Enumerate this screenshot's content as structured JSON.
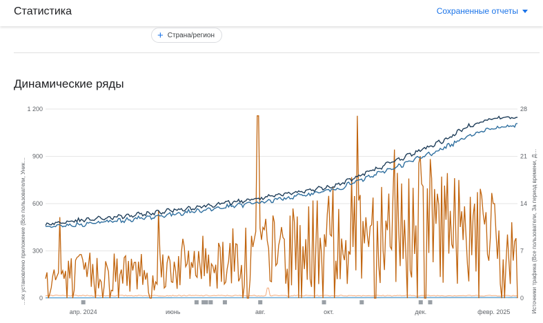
{
  "header": {
    "title": "Статистика",
    "saved_reports": "Сохраненные отчеты"
  },
  "filter_chip": {
    "label": "Страна/регион"
  },
  "section": {
    "title": "Динамические ряды"
  },
  "chart_data": {
    "type": "line",
    "left_axis": {
      "label": "…ях установлено приложение (Все пользователи, Уник…",
      "ticks": [
        "0",
        "300",
        "600",
        "900",
        "1 200"
      ],
      "ylim": [
        0,
        1200
      ]
    },
    "right_axis": {
      "label": "Источники трафика (Все пользователи, За период времени, Д…",
      "ticks": [
        "0",
        "7",
        "14",
        "21",
        "28"
      ],
      "ylim": [
        0,
        28
      ]
    },
    "x_ticks": [
      "апр. 2024",
      "июнь",
      "авг.",
      "окт.",
      "дек.",
      "февр. 2025"
    ],
    "colors": {
      "series_dark": "#1e3d59",
      "series_blue": "#2f6f9f",
      "series_orange": "#c1650f",
      "series_light_orange": "#f4a979",
      "series_light_blue": "#4f9fd6",
      "annotation_marker": "#9aa0a6",
      "grid": "#e6e6e6"
    },
    "series": [
      {
        "axis": "left",
        "anchors": [
          [
            0,
            470
          ],
          [
            10,
            500
          ],
          [
            20,
            530
          ],
          [
            30,
            570
          ],
          [
            40,
            610
          ],
          [
            47,
            640
          ],
          [
            55,
            680
          ],
          [
            62,
            720
          ],
          [
            70,
            820
          ],
          [
            78,
            920
          ],
          [
            85,
            1010
          ],
          [
            90,
            1100
          ],
          [
            95,
            1140
          ],
          [
            100,
            1150
          ]
        ]
      },
      {
        "axis": "left",
        "anchors": [
          [
            0,
            445
          ],
          [
            10,
            475
          ],
          [
            20,
            505
          ],
          [
            30,
            545
          ],
          [
            40,
            585
          ],
          [
            47,
            615
          ],
          [
            55,
            655
          ],
          [
            62,
            695
          ],
          [
            70,
            785
          ],
          [
            78,
            875
          ],
          [
            85,
            960
          ],
          [
            90,
            1040
          ],
          [
            95,
            1080
          ],
          [
            100,
            1095
          ]
        ]
      },
      {
        "axis": "right",
        "anchors": [
          [
            0,
            3
          ],
          [
            10,
            4
          ],
          [
            20,
            4
          ],
          [
            30,
            5
          ],
          [
            40,
            6
          ],
          [
            45,
            7
          ],
          [
            50,
            7
          ],
          [
            55,
            8
          ],
          [
            60,
            9
          ],
          [
            65,
            10
          ],
          [
            70,
            11
          ],
          [
            75,
            12
          ],
          [
            80,
            12
          ],
          [
            85,
            11
          ],
          [
            90,
            10
          ],
          [
            95,
            9
          ],
          [
            100,
            6
          ]
        ],
        "spikes": [
          [
            3,
            12
          ],
          [
            24,
            13
          ],
          [
            45,
            27
          ],
          [
            66,
            27
          ],
          [
            74,
            22
          ],
          [
            79,
            20
          ],
          [
            84,
            18
          ],
          [
            90,
            15
          ],
          [
            95,
            14
          ]
        ]
      },
      {
        "axis": "right",
        "anchors": [
          [
            0,
            0.3
          ],
          [
            100,
            0.3
          ]
        ],
        "spikes": [
          [
            47,
            1.5
          ]
        ]
      },
      {
        "axis": "left",
        "anchors": [
          [
            0,
            2
          ],
          [
            100,
            5
          ]
        ]
      }
    ],
    "annotation_markers_x_pct": [
      8,
      32,
      33.5,
      34,
      35,
      38,
      45.5,
      59,
      67,
      79.5,
      81.5
    ],
    "grid": true
  }
}
